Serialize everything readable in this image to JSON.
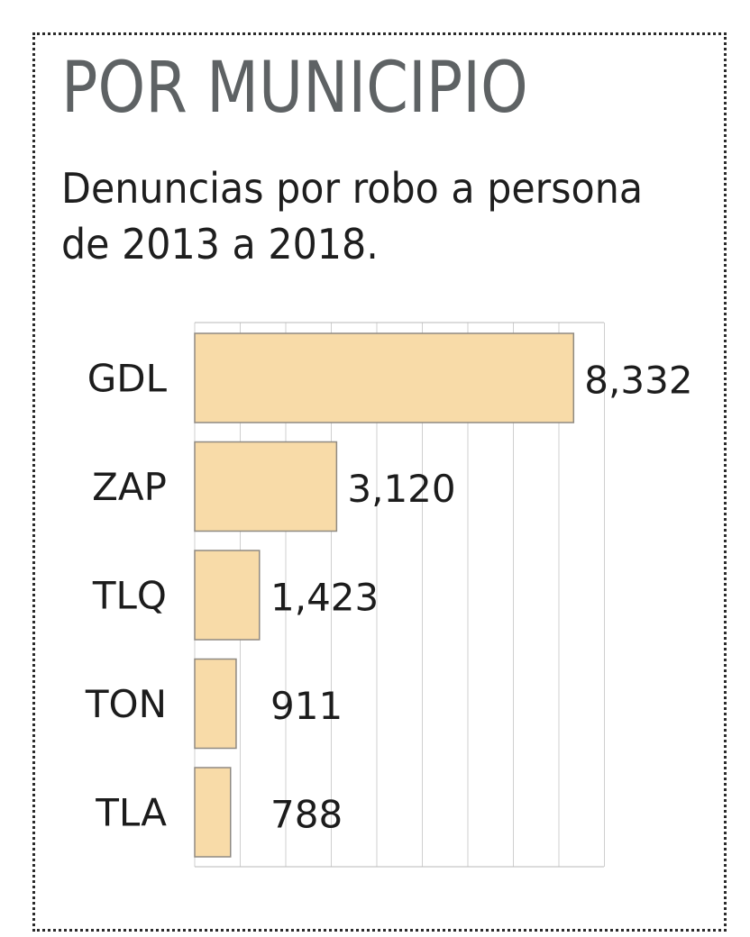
{
  "title": "POR MUNICIPIO",
  "subtitle": "Denuncias por robo a persona de 2013 a 2018.",
  "chart_data": {
    "type": "bar",
    "orientation": "horizontal",
    "categories": [
      "GDL",
      "ZAP",
      "TLQ",
      "TON",
      "TLA"
    ],
    "values": [
      8332,
      3120,
      1423,
      911,
      788
    ],
    "value_labels": [
      "8,332",
      "3,120",
      "1,423",
      "911",
      "788"
    ],
    "xlim": [
      0,
      9000
    ],
    "grid": true,
    "bar_color": "#f8dba8",
    "legend": "none"
  }
}
